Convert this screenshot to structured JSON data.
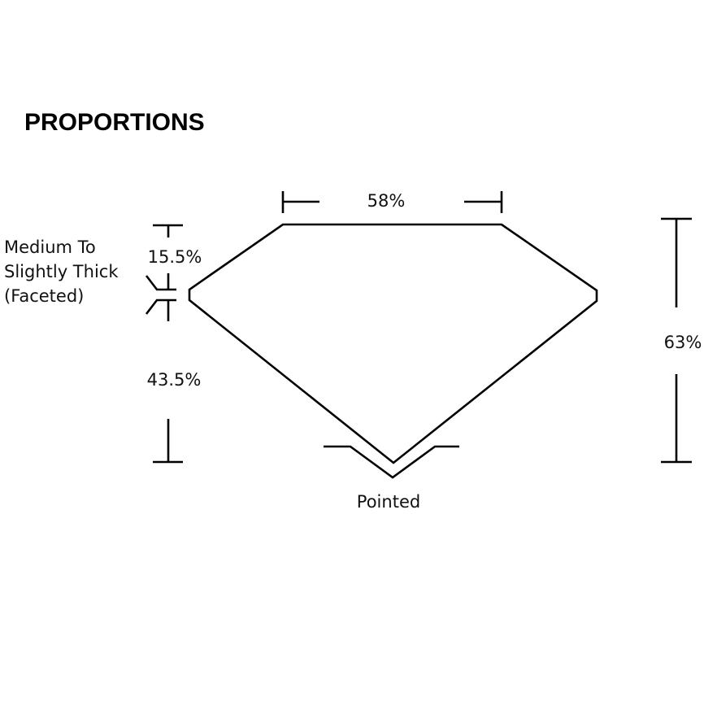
{
  "title": "PROPORTIONS",
  "labels": {
    "table": "58%",
    "total_depth": "63%",
    "crown_height": "15.5%",
    "pavilion_depth": "43.5%",
    "culet": "Pointed",
    "girdle_lines": [
      "Medium To",
      "Slightly Thick",
      "(Faceted)"
    ]
  }
}
